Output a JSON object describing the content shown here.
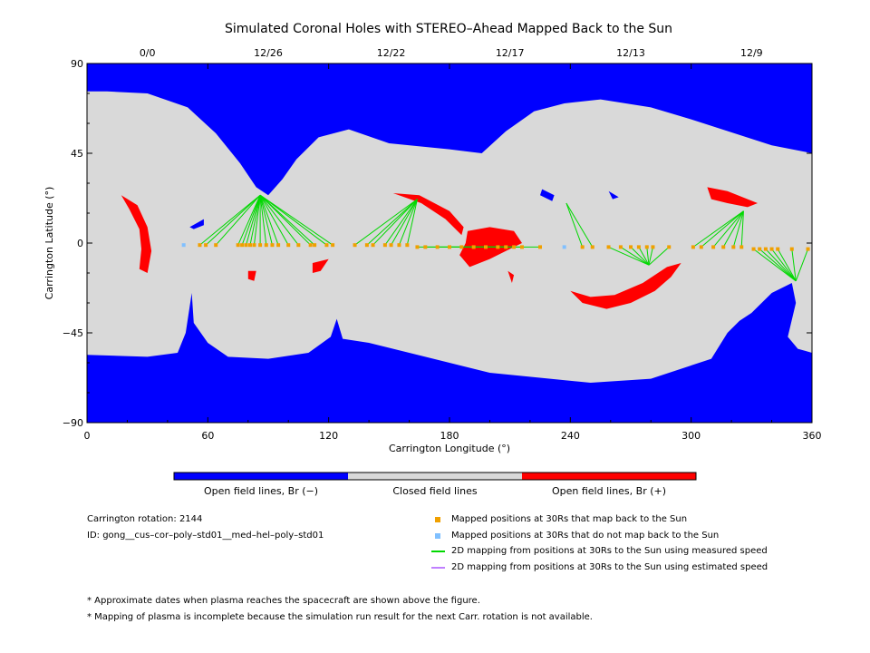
{
  "chart_data": {
    "type": "map",
    "title": "Simulated Coronal Holes with STEREO–Ahead Mapped Back to the Sun",
    "xlabel": "Carrington Longitude (°)",
    "ylabel": "Carrington Latitude (°)",
    "xlim": [
      0,
      360
    ],
    "ylim": [
      -90,
      90
    ],
    "xticks": [
      0,
      60,
      120,
      180,
      240,
      300,
      360
    ],
    "yticks": [
      -90,
      -45,
      0,
      45,
      90
    ],
    "top_axis": {
      "labels": [
        {
          "lon": 30,
          "label": "0/0"
        },
        {
          "lon": 90,
          "label": "12/26"
        },
        {
          "lon": 151,
          "label": "12/22"
        },
        {
          "lon": 210,
          "label": "12/17"
        },
        {
          "lon": 270,
          "label": "12/13"
        },
        {
          "lon": 330,
          "label": "12/9"
        }
      ]
    },
    "colors": {
      "open_negative": "#0000ff",
      "closed": "#d9d9d9",
      "open_positive": "#ff0000",
      "mapped": "#f0a000",
      "not_mapped": "#80c0ff",
      "measured_line": "#00d800",
      "estimated_line": "#c080ff"
    },
    "colorbar": {
      "segments": [
        {
          "label": "Open field lines, Br (−)",
          "color": "#0000ff"
        },
        {
          "label": "Closed field lines",
          "color": "#d9d9d9"
        },
        {
          "label": "Open field lines, Br (+)",
          "color": "#ff0000"
        }
      ]
    },
    "footpoints": [
      {
        "lon": 86,
        "lat": 24
      },
      {
        "lon": 164,
        "lat": 22
      },
      {
        "lon": 209,
        "lat": -2
      },
      {
        "lon": 238,
        "lat": 20
      },
      {
        "lon": 279,
        "lat": -11
      },
      {
        "lon": 326,
        "lat": 16
      },
      {
        "lon": 352,
        "lat": -19
      }
    ],
    "mapped_positions": [
      {
        "lon": 56,
        "lat": -1,
        "fp": 0
      },
      {
        "lon": 59,
        "lat": -1,
        "fp": 0
      },
      {
        "lon": 64,
        "lat": -1,
        "fp": 0
      },
      {
        "lon": 75,
        "lat": -1,
        "fp": 0
      },
      {
        "lon": 77,
        "lat": -1,
        "fp": 0
      },
      {
        "lon": 79,
        "lat": -1,
        "fp": 0
      },
      {
        "lon": 81,
        "lat": -1,
        "fp": 0
      },
      {
        "lon": 83,
        "lat": -1,
        "fp": 0
      },
      {
        "lon": 86,
        "lat": -1,
        "fp": 0
      },
      {
        "lon": 89,
        "lat": -1,
        "fp": 0
      },
      {
        "lon": 92,
        "lat": -1,
        "fp": 0
      },
      {
        "lon": 95,
        "lat": -1,
        "fp": 0
      },
      {
        "lon": 100,
        "lat": -1,
        "fp": 0
      },
      {
        "lon": 105,
        "lat": -1,
        "fp": 0
      },
      {
        "lon": 111,
        "lat": -1,
        "fp": 0
      },
      {
        "lon": 113,
        "lat": -1,
        "fp": 0
      },
      {
        "lon": 119,
        "lat": -1,
        "fp": 0
      },
      {
        "lon": 122,
        "lat": -1,
        "fp": 0
      },
      {
        "lon": 133,
        "lat": -1,
        "fp": 1
      },
      {
        "lon": 139,
        "lat": -1,
        "fp": 1
      },
      {
        "lon": 142,
        "lat": -1,
        "fp": 1
      },
      {
        "lon": 148,
        "lat": -1,
        "fp": 1
      },
      {
        "lon": 151,
        "lat": -1,
        "fp": 1
      },
      {
        "lon": 155,
        "lat": -1,
        "fp": 1
      },
      {
        "lon": 159,
        "lat": -1,
        "fp": 1
      },
      {
        "lon": 164,
        "lat": -2,
        "fp": 2
      },
      {
        "lon": 168,
        "lat": -2,
        "fp": 2
      },
      {
        "lon": 174,
        "lat": -2,
        "fp": 2
      },
      {
        "lon": 180,
        "lat": -2,
        "fp": 2
      },
      {
        "lon": 186,
        "lat": -2,
        "fp": 2
      },
      {
        "lon": 192,
        "lat": -2,
        "fp": 2
      },
      {
        "lon": 198,
        "lat": -2,
        "fp": 2
      },
      {
        "lon": 204,
        "lat": -2,
        "fp": 2
      },
      {
        "lon": 208,
        "lat": -2,
        "fp": 2
      },
      {
        "lon": 212,
        "lat": -2,
        "fp": 2
      },
      {
        "lon": 216,
        "lat": -2,
        "fp": 2
      },
      {
        "lon": 225,
        "lat": -2,
        "fp": 2
      },
      {
        "lon": 246,
        "lat": -2,
        "fp": 3
      },
      {
        "lon": 251,
        "lat": -2,
        "fp": 3
      },
      {
        "lon": 259,
        "lat": -2,
        "fp": 4
      },
      {
        "lon": 265,
        "lat": -2,
        "fp": 4
      },
      {
        "lon": 270,
        "lat": -2,
        "fp": 4
      },
      {
        "lon": 274,
        "lat": -2,
        "fp": 4
      },
      {
        "lon": 278,
        "lat": -2,
        "fp": 4
      },
      {
        "lon": 281,
        "lat": -2,
        "fp": 4
      },
      {
        "lon": 289,
        "lat": -2,
        "fp": 4
      },
      {
        "lon": 301,
        "lat": -2,
        "fp": 5
      },
      {
        "lon": 305,
        "lat": -2,
        "fp": 5
      },
      {
        "lon": 311,
        "lat": -2,
        "fp": 5
      },
      {
        "lon": 316,
        "lat": -2,
        "fp": 5
      },
      {
        "lon": 321,
        "lat": -2,
        "fp": 5
      },
      {
        "lon": 325,
        "lat": -2,
        "fp": 5
      },
      {
        "lon": 331,
        "lat": -3,
        "fp": 6
      },
      {
        "lon": 334,
        "lat": -3,
        "fp": 6
      },
      {
        "lon": 337,
        "lat": -3,
        "fp": 6
      },
      {
        "lon": 340,
        "lat": -3,
        "fp": 6
      },
      {
        "lon": 343,
        "lat": -3,
        "fp": 6
      },
      {
        "lon": 350,
        "lat": -3,
        "fp": 6
      },
      {
        "lon": 358,
        "lat": -3,
        "fp": 6
      }
    ],
    "unmapped_positions": [
      {
        "lon": 48,
        "lat": -1
      },
      {
        "lon": 237,
        "lat": -2
      }
    ],
    "open_negative_regions": [
      {
        "name": "north-polar-hole",
        "polygon": [
          [
            0,
            90
          ],
          [
            360,
            90
          ],
          [
            360,
            45
          ],
          [
            340,
            49
          ],
          [
            300,
            62
          ],
          [
            280,
            68
          ],
          [
            255,
            72
          ],
          [
            237,
            70
          ],
          [
            222,
            66
          ],
          [
            208,
            56
          ],
          [
            196,
            45
          ],
          [
            180,
            47
          ],
          [
            150,
            50
          ],
          [
            130,
            57
          ],
          [
            115,
            53
          ],
          [
            104,
            42
          ],
          [
            97,
            32
          ],
          [
            90,
            24
          ],
          [
            84,
            28
          ],
          [
            76,
            40
          ],
          [
            64,
            55
          ],
          [
            50,
            68
          ],
          [
            30,
            75
          ],
          [
            10,
            76
          ],
          [
            0,
            76
          ]
        ]
      },
      {
        "name": "south-polar-hole",
        "polygon": [
          [
            0,
            -90
          ],
          [
            360,
            -90
          ],
          [
            360,
            -55
          ],
          [
            353,
            -53
          ],
          [
            348,
            -47
          ],
          [
            352,
            -30
          ],
          [
            350,
            -20
          ],
          [
            340,
            -25
          ],
          [
            330,
            -35
          ],
          [
            324,
            -39
          ],
          [
            318,
            -45
          ],
          [
            310,
            -58
          ],
          [
            280,
            -68
          ],
          [
            250,
            -70
          ],
          [
            230,
            -68
          ],
          [
            200,
            -65
          ],
          [
            180,
            -60
          ],
          [
            160,
            -55
          ],
          [
            140,
            -50
          ],
          [
            127,
            -48
          ],
          [
            124,
            -38
          ],
          [
            121,
            -47
          ],
          [
            110,
            -55
          ],
          [
            90,
            -58
          ],
          [
            70,
            -57
          ],
          [
            60,
            -50
          ],
          [
            53,
            -40
          ],
          [
            52,
            -25
          ],
          [
            49,
            -45
          ],
          [
            45,
            -55
          ],
          [
            30,
            -57
          ],
          [
            0,
            -56
          ]
        ]
      },
      {
        "name": "small-hole-1",
        "polygon": [
          [
            51,
            8
          ],
          [
            58,
            12
          ],
          [
            58,
            9
          ],
          [
            53,
            7
          ]
        ]
      },
      {
        "name": "small-hole-2",
        "polygon": [
          [
            226,
            27
          ],
          [
            232,
            24
          ],
          [
            231,
            21
          ],
          [
            225,
            24
          ]
        ]
      },
      {
        "name": "small-hole-3",
        "polygon": [
          [
            259,
            26
          ],
          [
            264,
            23
          ],
          [
            261,
            22
          ]
        ]
      }
    ],
    "open_positive_regions": [
      {
        "name": "red-arc-1",
        "polygon": [
          [
            17,
            24
          ],
          [
            25,
            19
          ],
          [
            30,
            8
          ],
          [
            32,
            -4
          ],
          [
            30,
            -15
          ],
          [
            26,
            -13
          ],
          [
            27,
            -3
          ],
          [
            26,
            7
          ],
          [
            21,
            17
          ]
        ]
      },
      {
        "name": "red-arc-2",
        "polygon": [
          [
            152,
            25
          ],
          [
            165,
            24
          ],
          [
            180,
            16
          ],
          [
            187,
            8
          ],
          [
            186,
            4
          ],
          [
            178,
            12
          ],
          [
            166,
            20
          ]
        ]
      },
      {
        "name": "red-blob-1",
        "polygon": [
          [
            189,
            6
          ],
          [
            200,
            8
          ],
          [
            212,
            6
          ],
          [
            216,
            0
          ],
          [
            208,
            -4
          ],
          [
            200,
            -8
          ],
          [
            190,
            -12
          ],
          [
            185,
            -6
          ],
          [
            188,
            0
          ]
        ]
      },
      {
        "name": "red-arc-3",
        "polygon": [
          [
            240,
            -24
          ],
          [
            246,
            -30
          ],
          [
            258,
            -33
          ],
          [
            270,
            -30
          ],
          [
            282,
            -24
          ],
          [
            290,
            -17
          ],
          [
            295,
            -10
          ],
          [
            288,
            -12
          ],
          [
            276,
            -20
          ],
          [
            262,
            -26
          ],
          [
            250,
            -27
          ]
        ]
      },
      {
        "name": "red-blob-2",
        "polygon": [
          [
            308,
            28
          ],
          [
            318,
            26
          ],
          [
            333,
            20
          ],
          [
            328,
            18
          ],
          [
            318,
            20
          ],
          [
            310,
            22
          ]
        ]
      },
      {
        "name": "red-small-1",
        "polygon": [
          [
            80,
            -14
          ],
          [
            84,
            -14
          ],
          [
            83,
            -19
          ],
          [
            80,
            -18
          ]
        ]
      },
      {
        "name": "red-small-2",
        "polygon": [
          [
            112,
            -10
          ],
          [
            120,
            -8
          ],
          [
            116,
            -14
          ],
          [
            112,
            -15
          ]
        ]
      },
      {
        "name": "red-small-3",
        "polygon": [
          [
            209,
            -14
          ],
          [
            212,
            -16
          ],
          [
            211,
            -20
          ]
        ]
      }
    ]
  },
  "legend": {
    "carrington_rotation": "Carrington rotation: 2144",
    "model_id": "ID: gong__cus–cor–poly–std01__med–hel–poly–std01",
    "items": [
      {
        "symbol": "square",
        "color": "#f0a000",
        "label": "Mapped positions at 30Rs that map back to the Sun"
      },
      {
        "symbol": "square",
        "color": "#80c0ff",
        "label": "Mapped positions at 30Rs that do not map back to the Sun"
      },
      {
        "symbol": "line",
        "color": "#00d800",
        "label": "2D mapping from positions at 30Rs to the Sun using measured speed"
      },
      {
        "symbol": "line",
        "color": "#c080ff",
        "label": "2D mapping from positions at 30Rs to the Sun using estimated speed"
      }
    ]
  },
  "notes": [
    "* Approximate dates when plasma reaches the spacecraft are shown above the figure.",
    "* Mapping of plasma is incomplete because the simulation run result for the next Carr. rotation is not available."
  ]
}
